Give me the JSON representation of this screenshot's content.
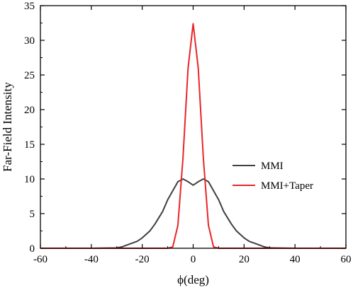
{
  "chart_data": {
    "type": "line",
    "xlabel": "ϕ(deg)",
    "ylabel": "Far-Field Intensity",
    "xlim": [
      -60,
      60
    ],
    "ylim": [
      0,
      35
    ],
    "x_ticks": [
      -60,
      -40,
      -20,
      0,
      20,
      40,
      60
    ],
    "y_ticks": [
      0,
      5,
      10,
      15,
      20,
      25,
      30,
      35
    ],
    "grid": false,
    "legend_position": "center-right",
    "series": [
      {
        "name": "MMI",
        "color": "#404040",
        "x": [
          -60,
          -40,
          -30,
          -28,
          -25,
          -22,
          -20,
          -17,
          -15,
          -12,
          -10,
          -8,
          -6,
          -4,
          -2,
          0,
          2,
          4,
          6,
          8,
          10,
          12,
          15,
          17,
          20,
          22,
          25,
          28,
          30,
          40,
          60
        ],
        "y": [
          0,
          0,
          0.05,
          0.2,
          0.6,
          1.0,
          1.5,
          2.5,
          3.5,
          5.3,
          7.0,
          8.3,
          9.6,
          10.0,
          9.6,
          9.1,
          9.6,
          10.0,
          9.6,
          8.3,
          7.0,
          5.3,
          3.5,
          2.5,
          1.5,
          1.0,
          0.6,
          0.2,
          0.05,
          0,
          0
        ]
      },
      {
        "name": "MMI+Taper",
        "color": "#e8262b",
        "x": [
          -60,
          -10,
          -8,
          -6,
          -4,
          -2,
          0,
          2,
          4,
          6,
          8,
          10,
          60
        ],
        "y": [
          0,
          0,
          0.2,
          3.3,
          13.0,
          26.0,
          32.4,
          26.0,
          13.0,
          3.3,
          0.2,
          0,
          0
        ]
      }
    ]
  }
}
